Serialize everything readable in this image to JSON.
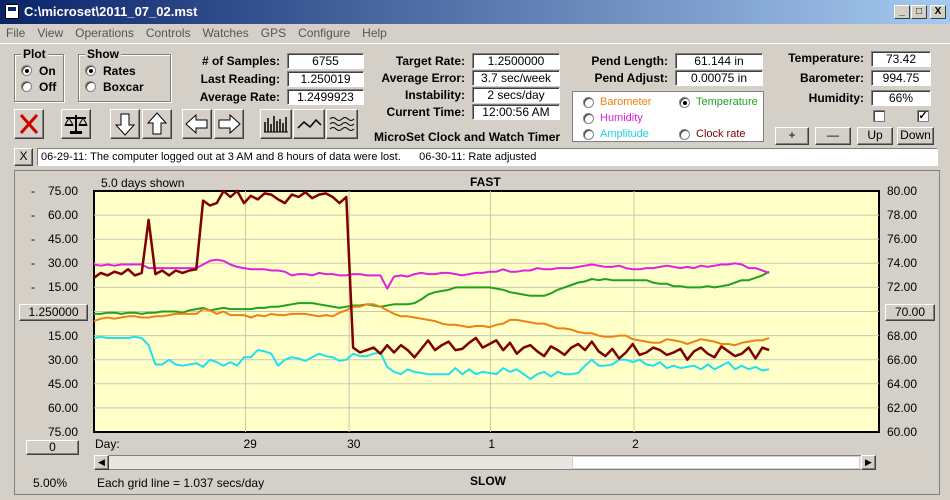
{
  "window": {
    "title": "C:\\microset\\2011_07_02.mst"
  },
  "window_buttons": {
    "minimize": "_",
    "maximize": "□",
    "close": "X"
  },
  "menu": [
    "File",
    "View",
    "Operations",
    "Controls",
    "Watches",
    "GPS",
    "Configure",
    "Help"
  ],
  "plot_group": {
    "title": "Plot",
    "on": "On",
    "off": "Off",
    "selected": "On"
  },
  "show_group": {
    "title": "Show",
    "rates": "Rates",
    "boxcar": "Boxcar",
    "selected": "Rates"
  },
  "stats": {
    "samples_label": "# of Samples:",
    "samples": "6755",
    "last_label": "Last Reading:",
    "last": "1.250019",
    "avg_rate_label": "Average Rate:",
    "avg_rate": "1.2499923"
  },
  "targets": {
    "target_label": "Target Rate:",
    "target": "1.2500000",
    "avg_err_label": "Average Error:",
    "avg_err": "3.7 sec/week",
    "instab_label": "Instability:",
    "instab": "2 secs/day",
    "time_label": "Current Time:",
    "time": "12:00:56 AM"
  },
  "pendulum": {
    "length_label": "Pend Length:",
    "length": "61.144 in",
    "adjust_label": "Pend Adjust:",
    "adjust": "0.00075 in"
  },
  "environment": {
    "temp_label": "Temperature:",
    "temp": "73.42",
    "baro_label": "Barometer:",
    "baro": "994.75",
    "hum_label": "Humidity:",
    "hum": "66%"
  },
  "series_selector": {
    "barometer": "Barometer",
    "temperature": "Temperature",
    "humidity": "Humidity",
    "amplitude": "Amplitude",
    "clock_rate": "Clock rate",
    "selected": "Temperature"
  },
  "scale_buttons": {
    "plus": "+",
    "minus": "—",
    "up": "Up",
    "down": "Down"
  },
  "checkboxes": [
    {
      "checked": false
    },
    {
      "checked": true
    }
  ],
  "app_caption": "MicroSet Clock and Watch Timer",
  "notes": {
    "close": "X",
    "text": "06-29-11: The computer logged out at 3 AM and 8 hours of data were lost.      06-30-11: Rate adjusted"
  },
  "chart_header": {
    "days_shown": "5.0 days shown",
    "fast": "FAST",
    "slow": "SLOW",
    "day_label": "Day:"
  },
  "left_center_button": "1.250000",
  "right_center_button": "70.00",
  "left_bottom_button": "0",
  "status": {
    "percent": "5.00%",
    "grid": "Each grid line = 1.037 secs/day"
  },
  "colors": {
    "plot_bg": "#ffffc8",
    "rate": "#800000",
    "humidity": "#e020e0",
    "temperature": "#20a020",
    "barometer": "#f08010",
    "amplitude": "#20e0f0"
  },
  "chart_data": {
    "type": "line",
    "x_ticks": [
      "29",
      "30",
      "1",
      "2"
    ],
    "y_left_ticks": [
      "75.00",
      "60.00",
      "45.00",
      "30.00",
      "15.00",
      "1.250000",
      "15.00",
      "30.00",
      "45.00",
      "60.00",
      "75.00"
    ],
    "y_right_ticks": [
      "80.00",
      "78.00",
      "76.00",
      "74.00",
      "72.00",
      "70.00",
      "68.00",
      "66.00",
      "64.00",
      "62.00",
      "60.00"
    ],
    "y_right_ylim": [
      60,
      80
    ],
    "series": [
      {
        "name": "Clock rate",
        "color": "#800000",
        "values": [
          72.8,
          73.2,
          73.0,
          73.3,
          73.1,
          73.5,
          73.0,
          73.2,
          77.6,
          73.1,
          73.4,
          73.0,
          73.4,
          73.2,
          73.4,
          73.5,
          79.2,
          78.8,
          79.0,
          80.0,
          79.5,
          80.0,
          79.0,
          79.6,
          79.3,
          79.8,
          79.7,
          79.3,
          79.0,
          79.7,
          79.5,
          79.9,
          79.4,
          79.7,
          79.8,
          79.5,
          79.0,
          79.5,
          67.0,
          66.6,
          66.8,
          67.0,
          66.5,
          67.2,
          66.6,
          67.2,
          66.8,
          66.2,
          66.9,
          67.6,
          66.8,
          67.2,
          67.5,
          66.8,
          66.9,
          67.4,
          67.8,
          67.0,
          67.3,
          67.6,
          66.8,
          67.4,
          66.5,
          67.0,
          67.2,
          66.7,
          66.3,
          67.1,
          66.8,
          66.4,
          67.0,
          67.3,
          66.8,
          67.5,
          66.7,
          66.3,
          66.9,
          66.1,
          66.6,
          67.3,
          66.4,
          66.6,
          67.0,
          66.8,
          66.4,
          66.6,
          66.9,
          66.0,
          66.7,
          67.0,
          66.5,
          66.2,
          67.1,
          66.7,
          66.3,
          66.5,
          67.0,
          66.1,
          67.0,
          66.8
        ]
      },
      {
        "name": "Humidity",
        "color": "#e020e0",
        "values": [
          73.9,
          73.8,
          73.9,
          73.8,
          73.9,
          73.9,
          73.9,
          73.9,
          73.6,
          73.6,
          73.6,
          73.6,
          73.6,
          73.6,
          73.6,
          73.6,
          73.9,
          74.2,
          74.3,
          74.2,
          73.9,
          73.7,
          73.6,
          73.5,
          73.5,
          73.5,
          73.4,
          73.4,
          73.3,
          73.0,
          73.1,
          73.1,
          73.0,
          73.2,
          73.1,
          73.1,
          73.0,
          73.0,
          73.1,
          73.1,
          73.0,
          73.0,
          73.0,
          71.9,
          72.9,
          73.0,
          72.9,
          73.1,
          73.2,
          73.1,
          73.1,
          73.2,
          73.2,
          73.1,
          73.0,
          73.1,
          73.2,
          73.2,
          73.3,
          73.3,
          73.5,
          73.3,
          73.3,
          73.4,
          73.4,
          73.6,
          73.5,
          73.5,
          73.6,
          73.6,
          73.6,
          73.7,
          73.8,
          73.9,
          73.8,
          73.7,
          73.7,
          73.8,
          73.6,
          73.5,
          73.5,
          73.6,
          73.6,
          73.7,
          73.8,
          73.7,
          73.6,
          73.7,
          73.6,
          73.8,
          73.7,
          73.8,
          73.9,
          73.9,
          74.0,
          73.9,
          73.6,
          73.6,
          73.4,
          73.2
        ]
      },
      {
        "name": "Temperature",
        "color": "#20a020",
        "values": [
          69.8,
          69.8,
          69.9,
          69.9,
          69.8,
          69.9,
          69.9,
          69.8,
          69.9,
          69.9,
          70.0,
          70.0,
          70.0,
          69.9,
          70.1,
          70.2,
          70.3,
          70.1,
          70.2,
          70.3,
          70.2,
          70.2,
          70.2,
          70.2,
          70.3,
          70.3,
          70.4,
          70.4,
          70.5,
          70.6,
          70.7,
          70.7,
          70.7,
          70.6,
          70.5,
          70.4,
          70.3,
          70.4,
          70.5,
          70.5,
          70.6,
          70.5,
          70.4,
          70.5,
          70.6,
          70.6,
          70.6,
          70.7,
          71.0,
          71.4,
          71.6,
          71.7,
          71.8,
          72.0,
          72.0,
          72.0,
          72.0,
          72.0,
          72.0,
          71.9,
          71.8,
          71.6,
          71.5,
          71.4,
          71.3,
          71.3,
          71.3,
          71.5,
          71.8,
          72.0,
          72.2,
          72.4,
          72.5,
          72.7,
          72.6,
          72.7,
          72.6,
          72.6,
          72.6,
          72.6,
          72.6,
          72.6,
          72.4,
          72.3,
          72.3,
          72.1,
          72.1,
          72.0,
          72.0,
          72.0,
          72.1,
          72.0,
          72.1,
          72.2,
          72.4,
          72.6,
          72.6,
          72.8,
          73.0,
          73.3
        ]
      },
      {
        "name": "Barometer",
        "color": "#f08010",
        "values": [
          69.2,
          69.4,
          69.5,
          69.4,
          69.5,
          69.6,
          69.6,
          69.5,
          69.5,
          69.6,
          69.6,
          69.7,
          69.8,
          69.8,
          69.8,
          69.8,
          70.2,
          70.1,
          69.8,
          70.0,
          69.7,
          69.7,
          69.7,
          69.5,
          69.7,
          69.6,
          69.8,
          69.7,
          69.7,
          69.8,
          69.8,
          69.8,
          69.7,
          69.6,
          69.7,
          69.6,
          69.9,
          70.1,
          70.4,
          70.4,
          70.6,
          70.6,
          70.4,
          70.1,
          69.8,
          69.6,
          69.6,
          69.5,
          69.4,
          69.3,
          69.2,
          69.0,
          68.9,
          68.9,
          68.8,
          68.7,
          68.8,
          68.8,
          68.7,
          68.9,
          69.0,
          69.3,
          69.3,
          69.2,
          69.1,
          69.0,
          69.0,
          68.8,
          68.6,
          68.6,
          68.5,
          68.3,
          68.2,
          68.2,
          68.0,
          67.9,
          67.9,
          68.0,
          68.0,
          67.7,
          67.6,
          67.5,
          67.4,
          67.4,
          67.7,
          67.6,
          67.5,
          67.3,
          67.5,
          67.7,
          67.6,
          67.5,
          67.3,
          67.3,
          67.2,
          67.4,
          67.5,
          67.6,
          67.6,
          67.8
        ]
      },
      {
        "name": "Amplitude",
        "color": "#20e0f0",
        "values": [
          67.8,
          67.9,
          67.8,
          67.8,
          67.8,
          67.8,
          67.9,
          67.8,
          67.2,
          65.6,
          65.6,
          66.0,
          65.6,
          65.5,
          65.6,
          65.7,
          65.4,
          66.0,
          65.8,
          65.5,
          65.8,
          65.5,
          66.2,
          66.2,
          66.8,
          66.7,
          66.5,
          65.5,
          66.0,
          66.2,
          66.1,
          65.9,
          66.2,
          66.5,
          66.3,
          66.2,
          65.9,
          66.0,
          66.5,
          66.3,
          66.3,
          66.5,
          66.6,
          65.4,
          65.0,
          64.8,
          65.2,
          65.0,
          64.9,
          64.8,
          64.8,
          64.8,
          64.8,
          65.3,
          64.8,
          65.2,
          64.8,
          65.0,
          64.9,
          64.8,
          65.3,
          65.0,
          65.2,
          64.8,
          64.4,
          64.8,
          65.0,
          64.6,
          65.0,
          64.8,
          64.8,
          64.9,
          65.5,
          66.0,
          65.5,
          65.5,
          65.6,
          66.0,
          66.0,
          65.8,
          66.0,
          65.6,
          65.5,
          65.8,
          65.3,
          65.5,
          65.3,
          65.4,
          65.5,
          65.2,
          65.6,
          65.2,
          65.5,
          65.8,
          65.2,
          65.5,
          65.2,
          65.4,
          65.1,
          65.2
        ]
      }
    ]
  }
}
